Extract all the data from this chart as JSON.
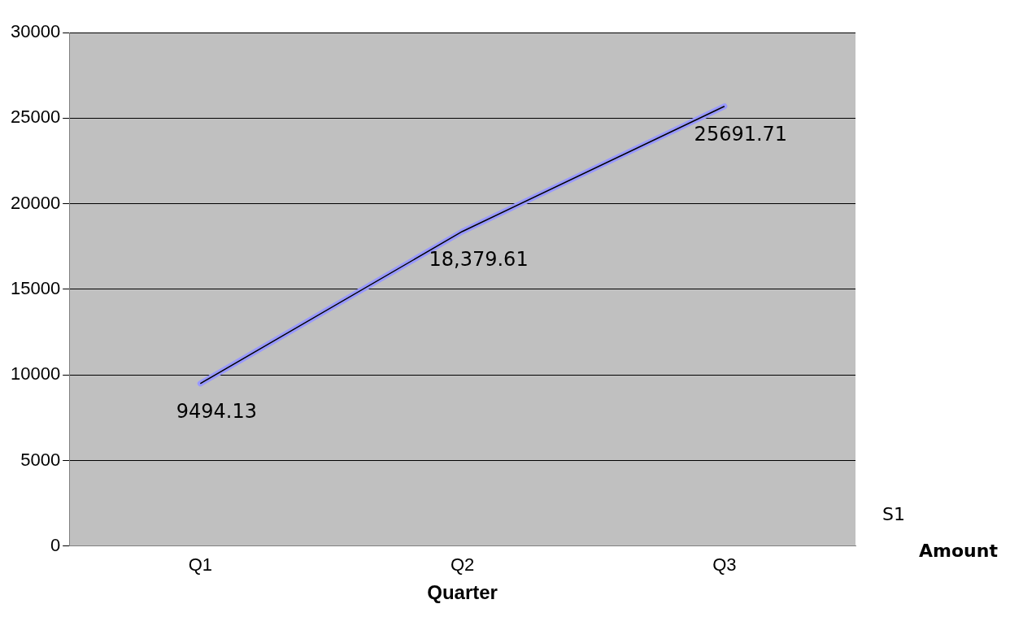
{
  "chart_data": {
    "type": "line",
    "xlabel": "Quarter",
    "categories": [
      "Q1",
      "Q2",
      "Q3"
    ],
    "series": [
      {
        "color": "#9999ff",
        "values": [
          9494.13,
          18379.61,
          25691.71
        ],
        "value_labels": [
          "9494.13",
          "18,379.61",
          "25691.71"
        ]
      }
    ],
    "ylim": [
      0,
      30000
    ],
    "yticks": [
      0,
      5000,
      10000,
      15000,
      20000,
      25000,
      30000
    ],
    "grid": "y",
    "marker": "none",
    "legend": false,
    "annotations": [
      "S1",
      "Amount"
    ]
  }
}
